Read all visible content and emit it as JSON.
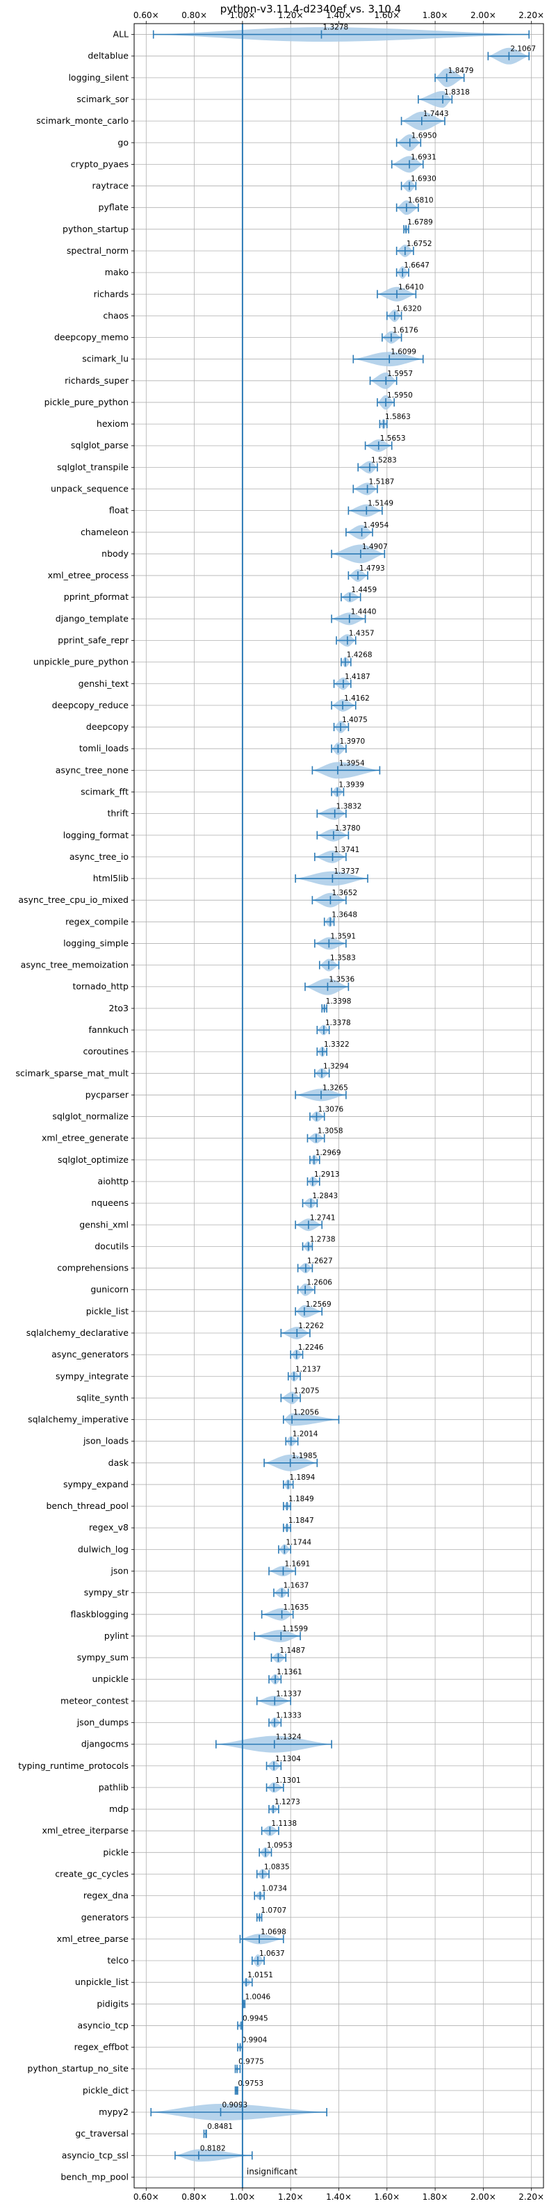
{
  "chart_data": {
    "type": "violin",
    "title": "python-v3.11.4-d2340ef vs. 3.10.4",
    "xlabel": "",
    "ylabel": "",
    "xlim": [
      0.55,
      2.25
    ],
    "x_ticks": [
      0.6,
      0.8,
      1.0,
      1.2,
      1.4,
      1.6,
      1.8,
      2.0,
      2.2
    ],
    "x_tick_labels": [
      "0.60×",
      "0.80×",
      "1.00×",
      "1.20×",
      "1.40×",
      "1.60×",
      "1.80×",
      "2.00×",
      "2.20×"
    ],
    "grid": true,
    "reference_line": 1.0,
    "annotation": "insignificant",
    "colors": {
      "violin": "#a9cbe7",
      "whisker": "#2c7bb6",
      "axis": "#000000",
      "grid": "#b0b0b0"
    },
    "categories": [
      "ALL",
      "deltablue",
      "logging_silent",
      "scimark_sor",
      "scimark_monte_carlo",
      "go",
      "crypto_pyaes",
      "raytrace",
      "pyflate",
      "python_startup",
      "spectral_norm",
      "mako",
      "richards",
      "chaos",
      "deepcopy_memo",
      "scimark_lu",
      "richards_super",
      "pickle_pure_python",
      "hexiom",
      "sqlglot_parse",
      "sqlglot_transpile",
      "unpack_sequence",
      "float",
      "chameleon",
      "nbody",
      "xml_etree_process",
      "pprint_pformat",
      "django_template",
      "pprint_safe_repr",
      "unpickle_pure_python",
      "genshi_text",
      "deepcopy_reduce",
      "deepcopy",
      "tomli_loads",
      "async_tree_none",
      "scimark_fft",
      "thrift",
      "logging_format",
      "async_tree_io",
      "html5lib",
      "async_tree_cpu_io_mixed",
      "regex_compile",
      "logging_simple",
      "async_tree_memoization",
      "tornado_http",
      "2to3",
      "fannkuch",
      "coroutines",
      "scimark_sparse_mat_mult",
      "pycparser",
      "sqlglot_normalize",
      "xml_etree_generate",
      "sqlglot_optimize",
      "aiohttp",
      "nqueens",
      "genshi_xml",
      "docutils",
      "comprehensions",
      "gunicorn",
      "pickle_list",
      "sqlalchemy_declarative",
      "async_generators",
      "sympy_integrate",
      "sqlite_synth",
      "sqlalchemy_imperative",
      "json_loads",
      "dask",
      "sympy_expand",
      "bench_thread_pool",
      "regex_v8",
      "dulwich_log",
      "json",
      "sympy_str",
      "flaskblogging",
      "pylint",
      "sympy_sum",
      "unpickle",
      "meteor_contest",
      "json_dumps",
      "djangocms",
      "typing_runtime_protocols",
      "pathlib",
      "mdp",
      "xml_etree_iterparse",
      "pickle",
      "create_gc_cycles",
      "regex_dna",
      "generators",
      "xml_etree_parse",
      "telco",
      "unpickle_list",
      "pidigits",
      "asyncio_tcp",
      "regex_effbot",
      "python_startup_no_site",
      "pickle_dict",
      "mypy2",
      "gc_traversal",
      "asyncio_tcp_ssl",
      "bench_mp_pool"
    ],
    "values": [
      1.3278,
      2.1067,
      1.8479,
      1.8318,
      1.7443,
      1.695,
      1.6931,
      1.693,
      1.681,
      1.6789,
      1.6752,
      1.6647,
      1.641,
      1.632,
      1.6176,
      1.6099,
      1.5957,
      1.595,
      1.5863,
      1.5653,
      1.5283,
      1.5187,
      1.5149,
      1.4954,
      1.4907,
      1.4793,
      1.4459,
      1.444,
      1.4357,
      1.4268,
      1.4187,
      1.4162,
      1.4075,
      1.397,
      1.3954,
      1.3939,
      1.3832,
      1.378,
      1.3741,
      1.3737,
      1.3652,
      1.3648,
      1.3591,
      1.3583,
      1.3536,
      1.3398,
      1.3378,
      1.3322,
      1.3294,
      1.3265,
      1.3076,
      1.3058,
      1.2969,
      1.2913,
      1.2843,
      1.2741,
      1.2738,
      1.2627,
      1.2606,
      1.2569,
      1.2262,
      1.2246,
      1.2137,
      1.2075,
      1.2056,
      1.2014,
      1.1985,
      1.1894,
      1.1849,
      1.1847,
      1.1744,
      1.1691,
      1.1637,
      1.1635,
      1.1599,
      1.1487,
      1.1361,
      1.1337,
      1.1333,
      1.1324,
      1.1304,
      1.1301,
      1.1273,
      1.1138,
      1.0953,
      1.0835,
      1.0734,
      1.0707,
      1.0698,
      1.0637,
      1.0151,
      1.0046,
      0.9945,
      0.9904,
      0.9775,
      0.9753,
      0.9093,
      0.8481,
      0.8182,
      null
    ],
    "value_labels": [
      "1.3278",
      "2.1067",
      "1.8479",
      "1.8318",
      "1.7443",
      "1.6950",
      "1.6931",
      "1.6930",
      "1.6810",
      "1.6789",
      "1.6752",
      "1.6647",
      "1.6410",
      "1.6320",
      "1.6176",
      "1.6099",
      "1.5957",
      "1.5950",
      "1.5863",
      "1.5653",
      "1.5283",
      "1.5187",
      "1.5149",
      "1.4954",
      "1.4907",
      "1.4793",
      "1.4459",
      "1.4440",
      "1.4357",
      "1.4268",
      "1.4187",
      "1.4162",
      "1.4075",
      "1.3970",
      "1.3954",
      "1.3939",
      "1.3832",
      "1.3780",
      "1.3741",
      "1.3737",
      "1.3652",
      "1.3648",
      "1.3591",
      "1.3583",
      "1.3536",
      "1.3398",
      "1.3378",
      "1.3322",
      "1.3294",
      "1.3265",
      "1.3076",
      "1.3058",
      "1.2969",
      "1.2913",
      "1.2843",
      "1.2741",
      "1.2738",
      "1.2627",
      "1.2606",
      "1.2569",
      "1.2262",
      "1.2246",
      "1.2137",
      "1.2075",
      "1.2056",
      "1.2014",
      "1.1985",
      "1.1894",
      "1.1849",
      "1.1847",
      "1.1744",
      "1.1691",
      "1.1637",
      "1.1635",
      "1.1599",
      "1.1487",
      "1.1361",
      "1.1337",
      "1.1333",
      "1.1324",
      "1.1304",
      "1.1301",
      "1.1273",
      "1.1138",
      "1.0953",
      "1.0835",
      "1.0734",
      "1.0707",
      "1.0698",
      "1.0637",
      "1.0151",
      "1.0046",
      "0.9945",
      "0.9904",
      "0.9775",
      "0.9753",
      "0.9093",
      "0.8481",
      "0.8182",
      ""
    ],
    "mins": [
      0.63,
      2.02,
      1.8,
      1.73,
      1.66,
      1.64,
      1.62,
      1.66,
      1.64,
      1.67,
      1.64,
      1.64,
      1.56,
      1.6,
      1.58,
      1.46,
      1.53,
      1.56,
      1.57,
      1.51,
      1.48,
      1.46,
      1.44,
      1.43,
      1.37,
      1.44,
      1.41,
      1.37,
      1.39,
      1.41,
      1.38,
      1.37,
      1.38,
      1.37,
      1.29,
      1.37,
      1.31,
      1.31,
      1.3,
      1.22,
      1.29,
      1.34,
      1.3,
      1.32,
      1.26,
      1.33,
      1.31,
      1.31,
      1.3,
      1.22,
      1.28,
      1.27,
      1.28,
      1.27,
      1.25,
      1.22,
      1.25,
      1.23,
      1.23,
      1.22,
      1.16,
      1.2,
      1.19,
      1.16,
      1.17,
      1.18,
      1.09,
      1.17,
      1.17,
      1.17,
      1.15,
      1.11,
      1.13,
      1.08,
      1.05,
      1.12,
      1.11,
      1.06,
      1.11,
      0.89,
      1.1,
      1.1,
      1.11,
      1.08,
      1.07,
      1.06,
      1.05,
      1.06,
      0.99,
      1.04,
      1.0,
      1.0,
      0.98,
      0.98,
      0.97,
      0.97,
      0.62,
      0.84,
      0.72,
      null
    ],
    "maxs": [
      2.19,
      2.19,
      1.92,
      1.87,
      1.84,
      1.74,
      1.75,
      1.72,
      1.73,
      1.69,
      1.71,
      1.69,
      1.72,
      1.66,
      1.66,
      1.75,
      1.64,
      1.63,
      1.6,
      1.62,
      1.56,
      1.56,
      1.58,
      1.54,
      1.59,
      1.52,
      1.49,
      1.51,
      1.47,
      1.45,
      1.45,
      1.47,
      1.44,
      1.43,
      1.57,
      1.42,
      1.43,
      1.44,
      1.43,
      1.52,
      1.43,
      1.38,
      1.43,
      1.4,
      1.44,
      1.35,
      1.36,
      1.35,
      1.36,
      1.43,
      1.34,
      1.34,
      1.32,
      1.32,
      1.31,
      1.33,
      1.29,
      1.29,
      1.3,
      1.33,
      1.28,
      1.25,
      1.24,
      1.24,
      1.4,
      1.23,
      1.31,
      1.21,
      1.2,
      1.2,
      1.2,
      1.22,
      1.19,
      1.21,
      1.24,
      1.18,
      1.16,
      1.2,
      1.16,
      1.37,
      1.16,
      1.17,
      1.15,
      1.15,
      1.12,
      1.11,
      1.09,
      1.08,
      1.17,
      1.09,
      1.04,
      1.01,
      1.0,
      1.0,
      0.99,
      0.98,
      1.35,
      0.85,
      1.04,
      null
    ],
    "widths": [
      0.7,
      0.8,
      0.9,
      0.8,
      0.9,
      0.8,
      0.8,
      0.6,
      0.7,
      0.4,
      0.6,
      0.6,
      0.7,
      0.6,
      0.6,
      0.7,
      0.8,
      0.7,
      0.5,
      0.6,
      0.6,
      0.6,
      0.6,
      0.7,
      0.9,
      0.6,
      0.5,
      0.6,
      0.6,
      0.5,
      0.6,
      0.6,
      0.6,
      0.6,
      0.8,
      0.5,
      0.6,
      0.6,
      0.6,
      0.7,
      0.7,
      0.5,
      0.6,
      0.6,
      0.8,
      0.4,
      0.5,
      0.5,
      0.5,
      0.6,
      0.5,
      0.5,
      0.5,
      0.5,
      0.5,
      0.6,
      0.5,
      0.5,
      0.6,
      0.6,
      0.6,
      0.5,
      0.5,
      0.6,
      0.6,
      0.5,
      0.8,
      0.5,
      0.4,
      0.4,
      0.5,
      0.5,
      0.5,
      0.6,
      0.6,
      0.5,
      0.5,
      0.5,
      0.5,
      0.8,
      0.5,
      0.5,
      0.4,
      0.5,
      0.5,
      0.5,
      0.4,
      0.3,
      0.5,
      0.6,
      0.4,
      0.2,
      0.4,
      0.3,
      0.2,
      0.2,
      0.8,
      0.1,
      0.6,
      0
    ]
  }
}
